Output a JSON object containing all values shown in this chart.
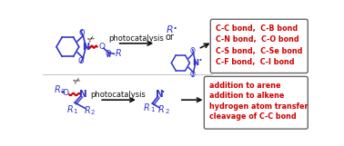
{
  "box1_lines": [
    "C-C bond,  C-B bond",
    "C-N bond,  C-O bond",
    "C-S bond,  C-Se bond",
    "C-F bond,  C-I bond"
  ],
  "box2_lines": [
    "addition to arene",
    "addition to alkene",
    "hydrogen atom transfer",
    "cleavage of C-C bond"
  ],
  "box_edge_color": "#666666",
  "box_text_color": "#cc0000",
  "blue": "#3333cc",
  "red": "#cc0000",
  "black": "#111111",
  "photocatalysis": "photocatalysis",
  "or_text": "or"
}
